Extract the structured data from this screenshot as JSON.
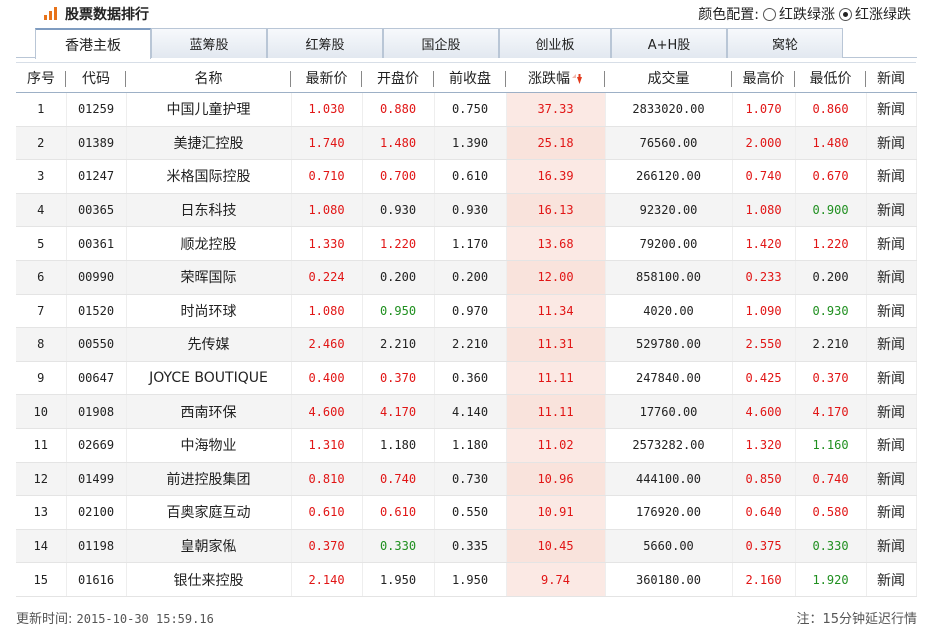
{
  "header": {
    "title": "股票数据排行",
    "color_config_label": "颜色配置:",
    "options": [
      {
        "label": "红跌绿涨",
        "checked": false
      },
      {
        "label": "红涨绿跌",
        "checked": true
      }
    ]
  },
  "tabs": [
    "香港主板",
    "蓝筹股",
    "红筹股",
    "国企股",
    "创业板",
    "A+H股",
    "窝轮"
  ],
  "active_tab": 0,
  "columns": [
    "序号",
    "代码",
    "名称",
    "最新价",
    "开盘价",
    "前收盘",
    "涨跌幅",
    "成交量",
    "最高价",
    "最低价",
    "新闻"
  ],
  "rows": [
    {
      "no": "1",
      "code": "01259",
      "name": "中国儿童护理",
      "last": "1.030",
      "open": "0.880",
      "prev": "0.750",
      "chg": "37.33",
      "vol": "2833020.00",
      "high": "1.070",
      "low": "0.860",
      "news": "新闻",
      "c_last": "red",
      "c_open": "red",
      "c_high": "red",
      "c_low": "red"
    },
    {
      "no": "2",
      "code": "01389",
      "name": "美捷汇控股",
      "last": "1.740",
      "open": "1.480",
      "prev": "1.390",
      "chg": "25.18",
      "vol": "76560.00",
      "high": "2.000",
      "low": "1.480",
      "news": "新闻",
      "c_last": "red",
      "c_open": "red",
      "c_high": "red",
      "c_low": "red"
    },
    {
      "no": "3",
      "code": "01247",
      "name": "米格国际控股",
      "last": "0.710",
      "open": "0.700",
      "prev": "0.610",
      "chg": "16.39",
      "vol": "266120.00",
      "high": "0.740",
      "low": "0.670",
      "news": "新闻",
      "c_last": "red",
      "c_open": "red",
      "c_high": "red",
      "c_low": "red"
    },
    {
      "no": "4",
      "code": "00365",
      "name": "日东科技",
      "last": "1.080",
      "open": "0.930",
      "prev": "0.930",
      "chg": "16.13",
      "vol": "92320.00",
      "high": "1.080",
      "low": "0.900",
      "news": "新闻",
      "c_last": "red",
      "c_open": "",
      "c_high": "red",
      "c_low": "green"
    },
    {
      "no": "5",
      "code": "00361",
      "name": "顺龙控股",
      "last": "1.330",
      "open": "1.220",
      "prev": "1.170",
      "chg": "13.68",
      "vol": "79200.00",
      "high": "1.420",
      "low": "1.220",
      "news": "新闻",
      "c_last": "red",
      "c_open": "red",
      "c_high": "red",
      "c_low": "red"
    },
    {
      "no": "6",
      "code": "00990",
      "name": "荣晖国际",
      "last": "0.224",
      "open": "0.200",
      "prev": "0.200",
      "chg": "12.00",
      "vol": "858100.00",
      "high": "0.233",
      "low": "0.200",
      "news": "新闻",
      "c_last": "red",
      "c_open": "",
      "c_high": "red",
      "c_low": ""
    },
    {
      "no": "7",
      "code": "01520",
      "name": "时尚环球",
      "last": "1.080",
      "open": "0.950",
      "prev": "0.970",
      "chg": "11.34",
      "vol": "4020.00",
      "high": "1.090",
      "low": "0.930",
      "news": "新闻",
      "c_last": "red",
      "c_open": "green",
      "c_high": "red",
      "c_low": "green"
    },
    {
      "no": "8",
      "code": "00550",
      "name": "先传媒",
      "last": "2.460",
      "open": "2.210",
      "prev": "2.210",
      "chg": "11.31",
      "vol": "529780.00",
      "high": "2.550",
      "low": "2.210",
      "news": "新闻",
      "c_last": "red",
      "c_open": "",
      "c_high": "red",
      "c_low": ""
    },
    {
      "no": "9",
      "code": "00647",
      "name": "JOYCE BOUTIQUE",
      "last": "0.400",
      "open": "0.370",
      "prev": "0.360",
      "chg": "11.11",
      "vol": "247840.00",
      "high": "0.425",
      "low": "0.370",
      "news": "新闻",
      "c_last": "red",
      "c_open": "red",
      "c_high": "red",
      "c_low": "red"
    },
    {
      "no": "10",
      "code": "01908",
      "name": "西南环保",
      "last": "4.600",
      "open": "4.170",
      "prev": "4.140",
      "chg": "11.11",
      "vol": "17760.00",
      "high": "4.600",
      "low": "4.170",
      "news": "新闻",
      "c_last": "red",
      "c_open": "red",
      "c_high": "red",
      "c_low": "red"
    },
    {
      "no": "11",
      "code": "02669",
      "name": "中海物业",
      "last": "1.310",
      "open": "1.180",
      "prev": "1.180",
      "chg": "11.02",
      "vol": "2573282.00",
      "high": "1.320",
      "low": "1.160",
      "news": "新闻",
      "c_last": "red",
      "c_open": "",
      "c_high": "red",
      "c_low": "green"
    },
    {
      "no": "12",
      "code": "01499",
      "name": "前进控股集团",
      "last": "0.810",
      "open": "0.740",
      "prev": "0.730",
      "chg": "10.96",
      "vol": "444100.00",
      "high": "0.850",
      "low": "0.740",
      "news": "新闻",
      "c_last": "red",
      "c_open": "red",
      "c_high": "red",
      "c_low": "red"
    },
    {
      "no": "13",
      "code": "02100",
      "name": "百奥家庭互动",
      "last": "0.610",
      "open": "0.610",
      "prev": "0.550",
      "chg": "10.91",
      "vol": "176920.00",
      "high": "0.640",
      "low": "0.580",
      "news": "新闻",
      "c_last": "red",
      "c_open": "red",
      "c_high": "red",
      "c_low": "red"
    },
    {
      "no": "14",
      "code": "01198",
      "name": "皇朝家俬",
      "last": "0.370",
      "open": "0.330",
      "prev": "0.335",
      "chg": "10.45",
      "vol": "5660.00",
      "high": "0.375",
      "low": "0.330",
      "news": "新闻",
      "c_last": "red",
      "c_open": "green",
      "c_high": "red",
      "c_low": "green"
    },
    {
      "no": "15",
      "code": "01616",
      "name": "银仕来控股",
      "last": "2.140",
      "open": "1.950",
      "prev": "1.950",
      "chg": "9.74",
      "vol": "360180.00",
      "high": "2.160",
      "low": "1.920",
      "news": "新闻",
      "c_last": "red",
      "c_open": "",
      "c_high": "red",
      "c_low": "green"
    }
  ],
  "footer": {
    "update_label": "更新时间:",
    "update_time": "2015-10-30 15:59.16",
    "note": "注：15分钟延迟行情"
  },
  "colors": {
    "up": "#e11515",
    "down": "#1f8f1f",
    "accent": "#e8731a"
  },
  "icons": {
    "logo": "bar-chart-icon",
    "sort": "sort-desc-icon"
  }
}
